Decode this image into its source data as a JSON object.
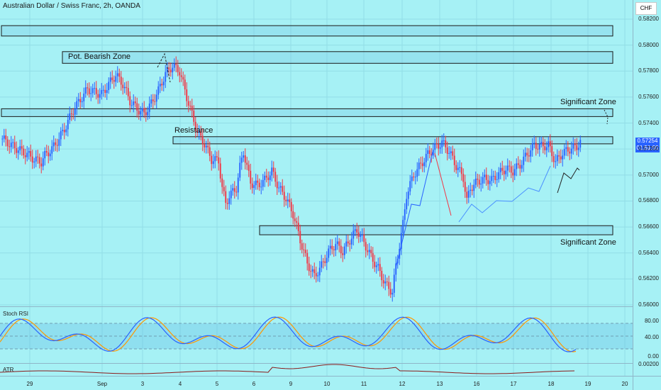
{
  "header": {
    "title": "Australian Dollar / Swiss Franc, 2h, OANDA",
    "currency": "CHF"
  },
  "chart_data": {
    "type": "candlestick",
    "symbol": "AUDCHF",
    "timeframe": "2h",
    "ylim": [
      0.56,
      0.582
    ],
    "y_ticks": [
      "0.58200",
      "0.58000",
      "0.57800",
      "0.57600",
      "0.57400",
      "0.57200",
      "0.57000",
      "0.56800",
      "0.56600",
      "0.56400",
      "0.56200",
      "0.56000"
    ],
    "x_ticks": [
      "29",
      "Sep",
      "3",
      "4",
      "5",
      "6",
      "9",
      "10",
      "11",
      "12",
      "13",
      "16",
      "17",
      "18",
      "19",
      "20"
    ],
    "last_price": "0.57254",
    "countdown": "01:51:00",
    "close_path": [
      [
        0,
        0.5728
      ],
      [
        6,
        0.5722
      ],
      [
        10,
        0.5719
      ],
      [
        14,
        0.5716
      ],
      [
        18,
        0.5712
      ],
      [
        22,
        0.571
      ],
      [
        24,
        0.5715
      ],
      [
        28,
        0.572
      ],
      [
        32,
        0.5728
      ],
      [
        36,
        0.5738
      ],
      [
        40,
        0.575
      ],
      [
        44,
        0.5758
      ],
      [
        48,
        0.5766
      ],
      [
        52,
        0.5764
      ],
      [
        56,
        0.5762
      ],
      [
        60,
        0.577
      ],
      [
        64,
        0.5777
      ],
      [
        68,
        0.577
      ],
      [
        72,
        0.5757
      ],
      [
        76,
        0.5751
      ],
      [
        80,
        0.5747
      ],
      [
        84,
        0.5755
      ],
      [
        88,
        0.5765
      ],
      [
        92,
        0.5778
      ],
      [
        96,
        0.5784
      ],
      [
        100,
        0.578
      ],
      [
        104,
        0.576
      ],
      [
        108,
        0.5742
      ],
      [
        110,
        0.5733
      ],
      [
        114,
        0.5724
      ],
      [
        118,
        0.5712
      ],
      [
        122,
        0.5711
      ],
      [
        124,
        0.569
      ],
      [
        126,
        0.5678
      ],
      [
        128,
        0.5684
      ],
      [
        132,
        0.569
      ],
      [
        134,
        0.5706
      ],
      [
        136,
        0.5718
      ],
      [
        140,
        0.5694
      ],
      [
        144,
        0.5692
      ],
      [
        148,
        0.5696
      ],
      [
        152,
        0.5703
      ],
      [
        156,
        0.569
      ],
      [
        160,
        0.5682
      ],
      [
        164,
        0.567
      ],
      [
        168,
        0.565
      ],
      [
        172,
        0.5632
      ],
      [
        176,
        0.5622
      ],
      [
        180,
        0.563
      ],
      [
        184,
        0.5641
      ],
      [
        188,
        0.5647
      ],
      [
        192,
        0.5641
      ],
      [
        196,
        0.565
      ],
      [
        200,
        0.5658
      ],
      [
        204,
        0.5648
      ],
      [
        208,
        0.5637
      ],
      [
        212,
        0.5628
      ],
      [
        216,
        0.5616
      ],
      [
        220,
        0.561
      ],
      [
        222,
        0.563
      ],
      [
        224,
        0.5646
      ],
      [
        226,
        0.5662
      ],
      [
        228,
        0.5685
      ],
      [
        232,
        0.57
      ],
      [
        236,
        0.5708
      ],
      [
        240,
        0.5716
      ],
      [
        244,
        0.5721
      ],
      [
        248,
        0.5725
      ],
      [
        252,
        0.5718
      ],
      [
        256,
        0.5707
      ],
      [
        260,
        0.5698
      ],
      [
        262,
        0.568
      ],
      [
        264,
        0.569
      ],
      [
        268,
        0.5695
      ],
      [
        272,
        0.5697
      ],
      [
        276,
        0.5696
      ],
      [
        280,
        0.5701
      ],
      [
        284,
        0.5705
      ],
      [
        288,
        0.5703
      ],
      [
        292,
        0.5708
      ],
      [
        296,
        0.5716
      ],
      [
        300,
        0.5723
      ],
      [
        304,
        0.5722
      ],
      [
        308,
        0.5723
      ],
      [
        312,
        0.571
      ],
      [
        316,
        0.5717
      ],
      [
        320,
        0.572
      ],
      [
        324,
        0.5722
      ],
      [
        326,
        0.57254
      ]
    ],
    "zones": [
      {
        "label": "",
        "high": 0.5815,
        "low": 0.5807
      },
      {
        "label": "Pot. Bearish Zone",
        "high": 0.5795,
        "low": 0.5786
      },
      {
        "label": "Significant Zone",
        "high": 0.5751,
        "low": 0.5745
      },
      {
        "label": "Resistance",
        "high": 0.57295,
        "low": 0.5724
      },
      {
        "label": "Significant Zone",
        "high": 0.5661,
        "low": 0.5654
      }
    ],
    "indicators": [
      {
        "name": "Stoch RSI",
        "levels": [
          "80.00",
          "40.00",
          "0.00"
        ]
      },
      {
        "name": "ATR",
        "value": "0.00200"
      }
    ]
  },
  "colors": {
    "up": "#2962ff",
    "down": "#f23645",
    "background": "#a6f1f5",
    "k_line": "#2962ff",
    "d_line": "#ff9800",
    "atr_line": "#8b1a1a"
  }
}
